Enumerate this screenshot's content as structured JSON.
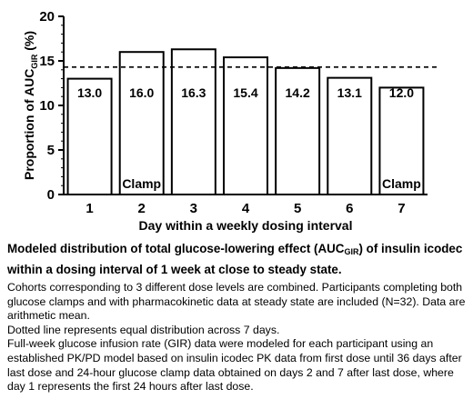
{
  "chart_data": {
    "type": "bar",
    "categories": [
      "1",
      "2",
      "3",
      "4",
      "5",
      "6",
      "7"
    ],
    "values": [
      13.0,
      16.0,
      16.3,
      15.4,
      14.2,
      13.1,
      12.0
    ],
    "value_labels": [
      "13.0",
      "16.0",
      "16.3",
      "15.4",
      "14.2",
      "13.1",
      "12.0"
    ],
    "bar_annotations": [
      "",
      "Clamp",
      "",
      "",
      "",
      "",
      "Clamp"
    ],
    "xlabel": "Day within a weekly dosing interval",
    "ylabel_main": "Proportion of  AUC",
    "ylabel_sub": "GIR",
    "ylabel_unit": " (%)",
    "ylim": [
      0,
      20
    ],
    "yticks": [
      "0",
      "5",
      "10",
      "15",
      "20"
    ],
    "reference_line": {
      "value": 14.3,
      "style": "dashed"
    },
    "bar_fill": "#ffffff",
    "bar_stroke": "#000000"
  },
  "caption": {
    "title_pre": "Modeled distribution of total glucose-lowering effect (AUC",
    "title_sub": "GIR",
    "title_post": ") of insulin icodec within a dosing interval of 1 week at close to steady state.",
    "notes": [
      "Cohorts corresponding to 3 different dose levels are combined. Participants completing both glucose clamps and with pharmacokinetic data at steady state are included (N=32). Data are arithmetic mean.",
      "Dotted line represents equal distribution across 7 days.",
      "Full-week glucose infusion rate (GIR) data were modeled for each participant using an established PK/PD model based on insulin icodec PK data from first dose until 36 days after last dose and 24-hour glucose clamp data obtained on days 2 and 7 after last dose, where day 1 represents the first 24 hours after last dose."
    ]
  }
}
